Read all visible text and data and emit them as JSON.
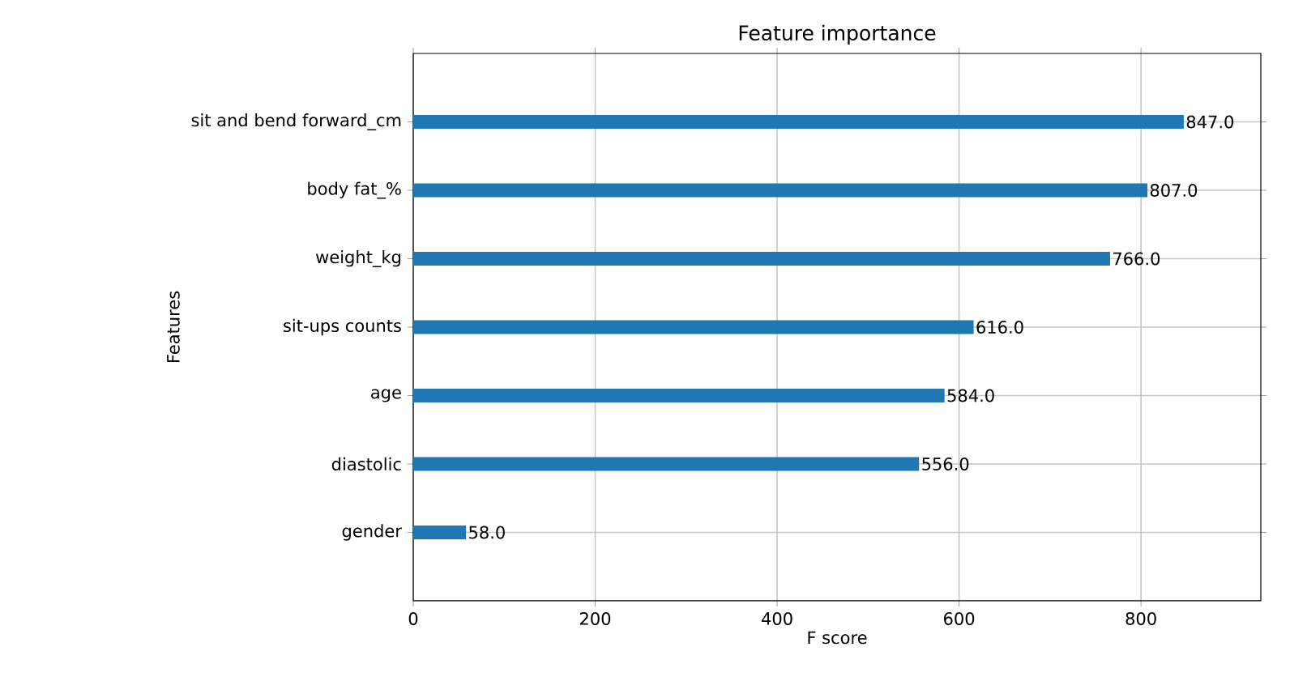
{
  "chart_data": {
    "type": "bar",
    "orientation": "horizontal",
    "title": "Feature importance",
    "xlabel": "F score",
    "ylabel": "Features",
    "categories": [
      "sit and bend forward_cm",
      "body fat_%",
      "weight_kg",
      "sit-ups counts",
      "age",
      "diastolic",
      "gender"
    ],
    "values": [
      847,
      807,
      766,
      616,
      584,
      556,
      58
    ],
    "value_labels": [
      "847.0",
      "807.0",
      "766.0",
      "616.0",
      "584.0",
      "556.0",
      "58.0"
    ],
    "color": "#1f77b4",
    "xlim": [
      0,
      931.7
    ],
    "xticks": [
      0,
      200,
      400,
      600,
      800
    ],
    "grid": true
  }
}
